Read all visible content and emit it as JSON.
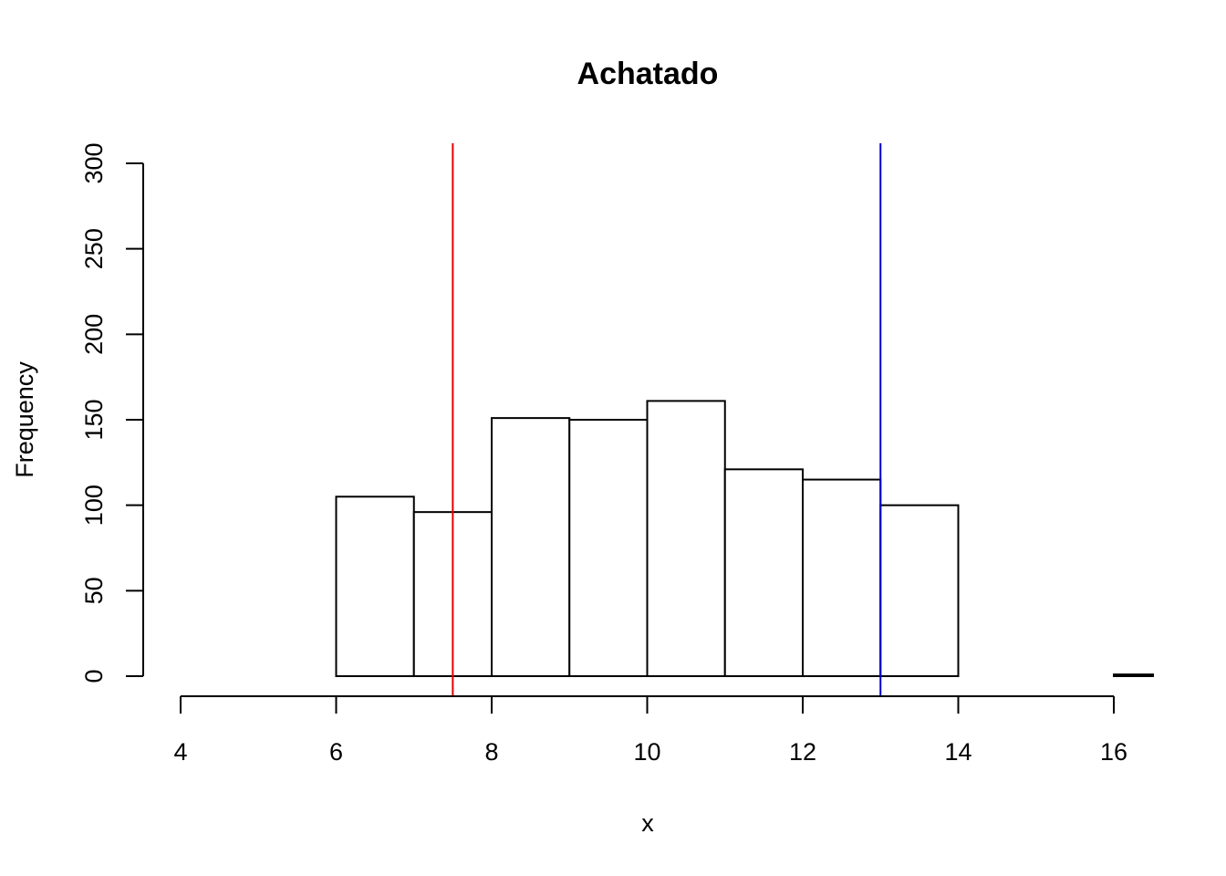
{
  "chart_data": {
    "type": "histogram",
    "title": "Achatado",
    "xlabel": "x",
    "ylabel": "Frequency",
    "xlim": [
      4,
      16.5
    ],
    "ylim": [
      0,
      312
    ],
    "x_ticks": [
      4,
      6,
      8,
      10,
      12,
      14,
      16
    ],
    "y_ticks": [
      0,
      50,
      100,
      150,
      200,
      250,
      300
    ],
    "bins": [
      {
        "start": 6,
        "end": 7,
        "count": 105
      },
      {
        "start": 7,
        "end": 8,
        "count": 96
      },
      {
        "start": 8,
        "end": 9,
        "count": 151
      },
      {
        "start": 9,
        "end": 10,
        "count": 150
      },
      {
        "start": 10,
        "end": 11,
        "count": 161
      },
      {
        "start": 11,
        "end": 12,
        "count": 121
      },
      {
        "start": 12,
        "end": 13,
        "count": 115
      },
      {
        "start": 13,
        "end": 14,
        "count": 100
      },
      {
        "start": 14,
        "end": 15,
        "count": 0
      },
      {
        "start": 15,
        "end": 16,
        "count": 0
      },
      {
        "start": 16,
        "end": 17,
        "count": 1
      }
    ],
    "reference_lines": [
      {
        "x": 7.5,
        "color": "#e00000"
      },
      {
        "x": 13,
        "color": "#0000cc"
      }
    ],
    "bar_fill": "#ffffff",
    "bar_stroke": "#000000",
    "grid": false
  }
}
